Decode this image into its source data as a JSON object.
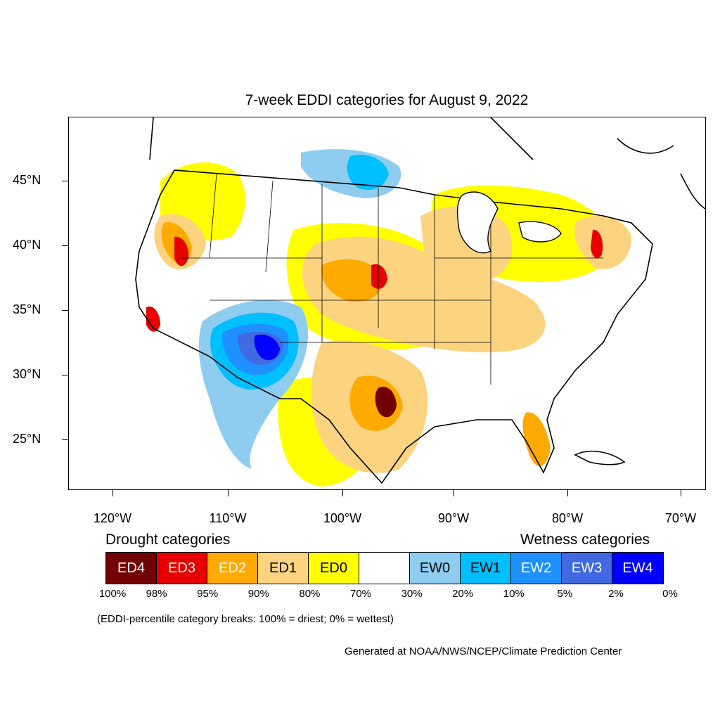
{
  "title": "7-week EDDI categories for August 9, 2022",
  "lat_labels": [
    "45°N",
    "40°N",
    "35°N",
    "30°N",
    "25°N"
  ],
  "lon_labels": [
    "120°W",
    "110°W",
    "100°W",
    "90°W",
    "80°W",
    "70°W"
  ],
  "legend": {
    "drought_heading": "Drought categories",
    "wetness_heading": "Wetness categories",
    "categories": [
      {
        "label": "ED4",
        "color": "#730000"
      },
      {
        "label": "ED3",
        "color": "#e60000"
      },
      {
        "label": "ED2",
        "color": "#ffaa00"
      },
      {
        "label": "ED1",
        "color": "#fcd37f"
      },
      {
        "label": "ED0",
        "color": "#ffff00"
      },
      {
        "label": "",
        "color": "#ffffff"
      },
      {
        "label": "EW0",
        "color": "#8ecdf0"
      },
      {
        "label": "EW1",
        "color": "#00bfff"
      },
      {
        "label": "EW2",
        "color": "#1e90ff"
      },
      {
        "label": "EW3",
        "color": "#4169e1"
      },
      {
        "label": "EW4",
        "color": "#0000ff"
      }
    ],
    "percentiles": [
      "100%",
      "98%",
      "95%",
      "90%",
      "80%",
      "70%",
      "30%",
      "20%",
      "10%",
      "5%",
      "2%",
      "0%"
    ]
  },
  "note": "(EDDI-percentile category breaks: 100% = driest; 0% = wettest)",
  "credit": "Generated at NOAA/NWS/NCEP/Climate Prediction Center"
}
